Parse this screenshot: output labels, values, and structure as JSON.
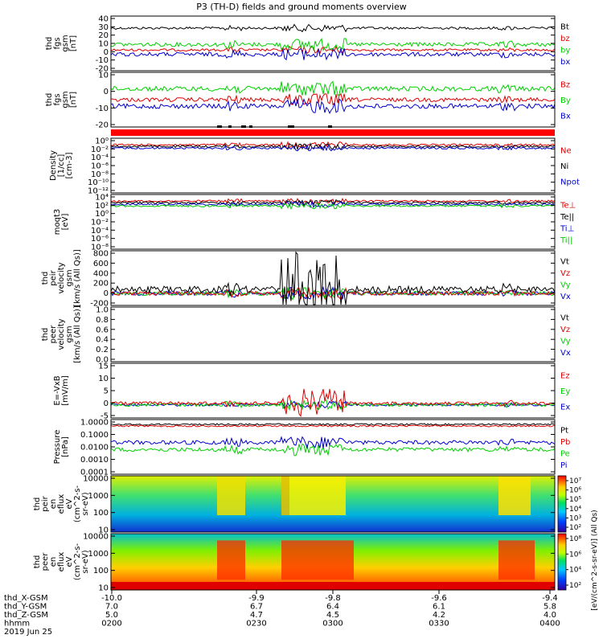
{
  "title": "P3 (TH-D) fields and ground moments overview",
  "colors": {
    "black": "#000000",
    "red": "#e00000",
    "green": "#00d000",
    "blue": "#0000d0"
  },
  "chart_data": {
    "type": "line",
    "panels": [
      {
        "id": "fgs-gsm",
        "ylabel": [
          "thd",
          "fgs",
          "gsm",
          "[nT]"
        ],
        "yticks": [
          "40",
          "30",
          "20",
          "10",
          "0",
          "-10",
          "-20"
        ],
        "ylim": [
          -20,
          40
        ],
        "legend": [
          {
            "label": "Bt",
            "color": "#000000"
          },
          {
            "label": "bz",
            "color": "#e00000"
          },
          {
            "label": "by",
            "color": "#00d000"
          },
          {
            "label": "bx",
            "color": "#0000d0"
          }
        ],
        "series_levels": {
          "Bt": 28,
          "bz": 0,
          "by": 6,
          "bx": -12
        }
      },
      {
        "id": "fgs-gsm-2",
        "ylabel": [
          "thd",
          "fgs",
          "gsm",
          "[nT]"
        ],
        "yticks": [
          "10",
          "0",
          "-10",
          "-20"
        ],
        "ylim": [
          -25,
          18
        ],
        "legend": [
          {
            "label": "Bz",
            "color": "#e00000"
          },
          {
            "label": "By",
            "color": "#00d000"
          },
          {
            "label": "Bx",
            "color": "#0000d0"
          }
        ],
        "series_levels": {
          "Bz": -2,
          "By": 5,
          "Bx": -8
        }
      },
      {
        "id": "density",
        "ylabel": [
          "Density",
          "[1/cc]",
          "[cm-3]"
        ],
        "yticks": [
          "10⁰",
          "10⁻²",
          "10⁻⁴",
          "10⁻⁶",
          "10⁻⁸",
          "10⁻¹⁰",
          "10⁻¹²"
        ],
        "legend": [
          {
            "label": "Ne",
            "color": "#e00000"
          },
          {
            "label": "Ni",
            "color": "#000000"
          },
          {
            "label": "Npot",
            "color": "#0000d0"
          }
        ]
      },
      {
        "id": "temperature",
        "ylabel": [
          "moqt3",
          "[eV]"
        ],
        "yticks": [
          "10⁴",
          "10²",
          "10⁰",
          "10⁻²",
          "10⁻⁴",
          "10⁻⁶",
          "10⁻⁸"
        ],
        "legend": [
          {
            "label": "Te⊥",
            "color": "#e00000"
          },
          {
            "label": "Te||",
            "color": "#000000"
          },
          {
            "label": "Ti⊥",
            "color": "#0000d0"
          },
          {
            "label": "Ti||",
            "color": "#00d000"
          }
        ]
      },
      {
        "id": "peir-velocity",
        "ylabel": [
          "thd",
          "peir",
          "velocity",
          "gsm",
          "[km/s (All Qs)]"
        ],
        "yticks": [
          "800",
          "600",
          "400",
          "200",
          "0",
          "-200"
        ],
        "ylim": [
          -200,
          800
        ],
        "legend": [
          {
            "label": "Vt",
            "color": "#000000"
          },
          {
            "label": "Vz",
            "color": "#e00000"
          },
          {
            "label": "Vy",
            "color": "#00d000"
          },
          {
            "label": "Vx",
            "color": "#0000d0"
          }
        ]
      },
      {
        "id": "peer-velocity",
        "ylabel": [
          "thd",
          "peer",
          "velocity",
          "gsm",
          "[km/s (All Qs)]"
        ],
        "yticks": [
          "1.0",
          "0.8",
          "0.6",
          "0.4",
          "0.2",
          "0.0"
        ],
        "ylim": [
          0,
          1
        ],
        "legend": [
          {
            "label": "Vt",
            "color": "#000000"
          },
          {
            "label": "Vz",
            "color": "#e00000"
          },
          {
            "label": "Vy",
            "color": "#00d000"
          },
          {
            "label": "Vx",
            "color": "#0000d0"
          }
        ]
      },
      {
        "id": "efield",
        "ylabel": [
          "E=-VxB",
          "[mV/m]"
        ],
        "yticks": [
          "15",
          "10",
          "5",
          "0",
          "-5"
        ],
        "ylim": [
          -5,
          15
        ],
        "legend": [
          {
            "label": "Ez",
            "color": "#e00000"
          },
          {
            "label": "Ey",
            "color": "#00d000"
          },
          {
            "label": "Ex",
            "color": "#0000d0"
          }
        ]
      },
      {
        "id": "pressure",
        "ylabel": [
          "Pressure",
          "[nPa]"
        ],
        "yticks": [
          "1.0000",
          "0.1000",
          "0.0100",
          "0.0010",
          "0.0001"
        ],
        "legend": [
          {
            "label": "Pt",
            "color": "#000000"
          },
          {
            "label": "Pb",
            "color": "#e00000"
          },
          {
            "label": "Pe",
            "color": "#00d000"
          },
          {
            "label": "Pi",
            "color": "#0000d0"
          }
        ]
      },
      {
        "id": "peir-eflux",
        "type": "heatmap",
        "ylabel": [
          "thd",
          "peir",
          "en",
          "eflux",
          "eV",
          "(cm^2-s-",
          "sr-eV)"
        ],
        "yticks": [
          "10000",
          "1000",
          "100",
          "10"
        ],
        "colorbar_ticks": [
          "10⁷",
          "10⁶",
          "10⁵",
          "10⁴",
          "10³",
          "10²"
        ]
      },
      {
        "id": "peer-eflux",
        "type": "heatmap",
        "ylabel": [
          "thd",
          "peer",
          "en",
          "eflux",
          "eV",
          "(cm^2-s-",
          "sr-eV)"
        ],
        "yticks": [
          "10000",
          "1000",
          "100",
          "10"
        ],
        "colorbar_ticks": [
          "10⁸",
          "10⁶",
          "10⁴",
          "10²"
        ]
      }
    ],
    "colorbar_label": "[eV/(cm^2-s-sr-eV)] (All Qs)",
    "x_axis": {
      "rows": [
        {
          "label": "thd_X-GSM",
          "values": [
            "-10.0",
            "-9.9",
            "-9.8",
            "-9.6",
            "-9.4"
          ]
        },
        {
          "label": "thd_Y-GSM",
          "values": [
            "7.0",
            "6.7",
            "6.4",
            "6.1",
            "5.8"
          ]
        },
        {
          "label": "thd_Z-GSM",
          "values": [
            "5.0",
            "4.7",
            "4.5",
            "4.2",
            "4.0"
          ]
        },
        {
          "label": "hhmm",
          "values": [
            "0200",
            "0230",
            "0300",
            "0330",
            "0400"
          ]
        }
      ],
      "date": "2019 Jun 25"
    }
  }
}
